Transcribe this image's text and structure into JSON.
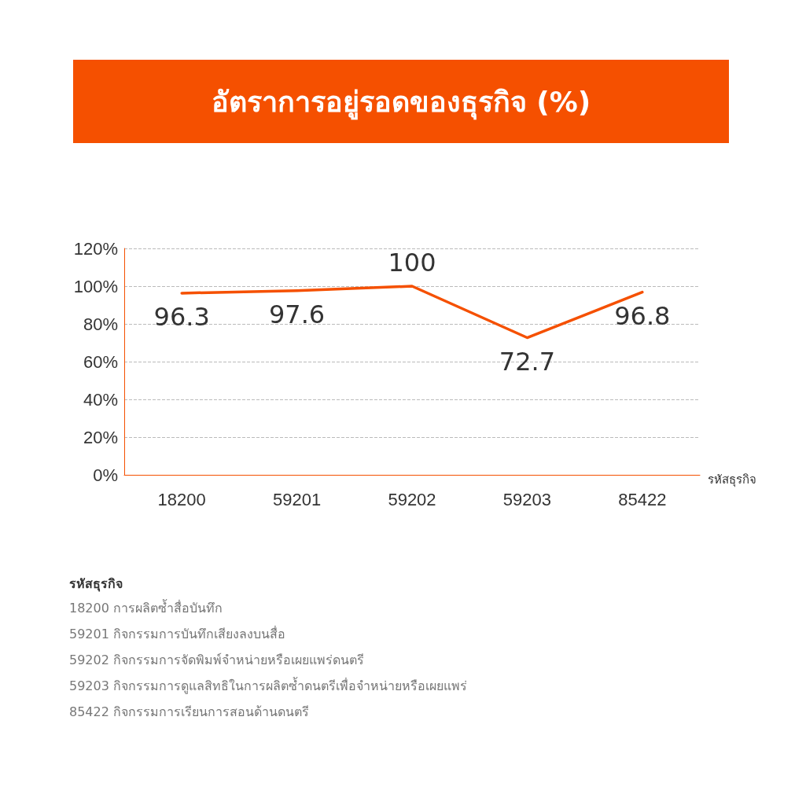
{
  "chart_data": {
    "type": "line",
    "title": "อัตราการอยู่รอดของธุรกิจ (%)",
    "xlabel": "รหัสธุรกิจ",
    "categories": [
      "18200",
      "59201",
      "59202",
      "59203",
      "85422"
    ],
    "series": [
      {
        "color": "#f55000",
        "values": [
          96.3,
          97.6,
          100,
          72.7,
          96.8
        ]
      }
    ],
    "ylim": [
      0,
      120
    ],
    "yticks": [
      {
        "value": 0,
        "label": "0%"
      },
      {
        "value": 20,
        "label": "20%"
      },
      {
        "value": 40,
        "label": "40%"
      },
      {
        "value": 60,
        "label": "60%"
      },
      {
        "value": 80,
        "label": "80%"
      },
      {
        "value": 100,
        "label": "100%"
      },
      {
        "value": 120,
        "label": "120%"
      }
    ],
    "grid": "y",
    "marker": "none",
    "line_style": "solid",
    "data_labels": true,
    "annotations": [
      "รหัสธุรกิจ",
      "18200 การผลิตซ้ำสื่อบันทึก",
      "59201 กิจกรรมการบันทึกเสียงลงบนสื่อ",
      "59202 กิจกรรมการจัดพิมพ์จำหน่ายหรือเผยแพร่ดนตรี",
      "59203 กิจกรรมการดูแลสิทธิในการผลิตซ้ำดนตรีเพื่อจำหน่ายหรือเผยแพร่",
      "85422 กิจกรรมการเรียนการสอนด้านดนตรี"
    ]
  }
}
